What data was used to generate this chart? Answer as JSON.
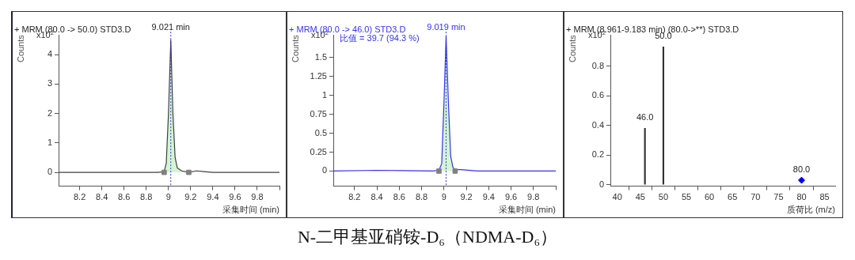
{
  "chart_data": [
    {
      "type": "line",
      "title": "+ MRM (80.0 -> 50.0) STD3.D",
      "xlabel": "采集时间 (min)",
      "ylabel": "Counts",
      "annotations": [
        "x10$^{2}$",
        "N-二甲基亚硝铵-D₆（NDMA-D₆）"
      ],
      "xlim": [
        8.01,
        10.0
      ],
      "xticks": [
        8.2,
        8.4,
        8.6,
        8.8,
        9,
        9.2,
        9.4,
        9.6,
        9.8,
        {
          "value": 10,
          "label": null
        }
      ],
      "ylim": [
        -0.47,
        4.67
      ],
      "yticks": [
        0,
        1,
        2,
        3,
        4
      ],
      "ref_lines": [
        {
          "axis": "x",
          "value": 9.021,
          "label": "9.021 min",
          "color": "#3333cc",
          "line_style": "dotted"
        }
      ],
      "series": [
        {
          "type": "area",
          "color": "#d4f5d0",
          "x": [
            8.961,
            8.98,
            9.0,
            9.021,
            9.04,
            9.06,
            9.08,
            9.12,
            9.183
          ],
          "values": [
            0,
            0.3,
            2.0,
            4.5,
            2.0,
            0.5,
            0.15,
            0.05,
            0
          ]
        },
        {
          "type": "line",
          "color": "#404040",
          "x": [
            8.01,
            8.5,
            8.9,
            8.96,
            8.98,
            9.0,
            9.021,
            9.04,
            9.06,
            9.08,
            9.12,
            9.183,
            9.25,
            9.4,
            10.0
          ],
          "values": [
            0,
            0,
            0,
            0.02,
            0.3,
            2.0,
            4.5,
            2.0,
            0.5,
            0.15,
            0.05,
            0,
            0.05,
            0,
            0
          ]
        },
        {
          "type": "scatter",
          "marker": "square",
          "color": "#808080",
          "x": [
            8.961,
            9.183
          ],
          "values": [
            0,
            0
          ]
        }
      ]
    },
    {
      "type": "line",
      "title": "+ MRM (80.0 -> 46.0) STD3.D",
      "subtitle": "比值 = 39.7 (94.3 %)",
      "xlabel": "采集时间 (min)",
      "ylabel": "Counts",
      "annotations": [
        "x10$^{2}$"
      ],
      "xlim": [
        8.01,
        10.0
      ],
      "xticks": [
        8.2,
        8.4,
        8.6,
        8.8,
        9,
        9.2,
        9.4,
        9.6,
        9.8,
        {
          "value": 10,
          "label": null
        }
      ],
      "ylim": [
        -0.2,
        1.8
      ],
      "yticks": [
        0,
        0.25,
        0.5,
        0.75,
        1,
        1.25,
        1.5
      ],
      "ref_lines": [
        {
          "axis": "x",
          "value": 9.019,
          "label": "9.019 min",
          "color": "#3333cc",
          "line_style": "dotted"
        }
      ],
      "series": [
        {
          "type": "area",
          "color": "#d4f5d0",
          "x": [
            8.955,
            8.98,
            9.0,
            9.019,
            9.04,
            9.06,
            9.08,
            9.1
          ],
          "values": [
            0,
            0.1,
            0.9,
            1.78,
            0.9,
            0.2,
            0.05,
            0
          ]
        },
        {
          "type": "line",
          "color": "#3333ee",
          "x": [
            8.01,
            8.4,
            8.9,
            8.955,
            8.98,
            9.0,
            9.019,
            9.04,
            9.06,
            9.08,
            9.1,
            9.15,
            9.3,
            10.0
          ],
          "values": [
            0,
            0.01,
            0,
            0.01,
            0.1,
            0.9,
            1.78,
            0.9,
            0.2,
            0.05,
            0.02,
            0.02,
            0,
            0
          ]
        },
        {
          "type": "scatter",
          "marker": "square",
          "color": "#808080",
          "x": [
            8.955,
            9.1
          ],
          "values": [
            0,
            0
          ]
        }
      ]
    },
    {
      "type": "bar",
      "title": "+ MRM (8.961-9.183 min) (80.0->**) STD3.D",
      "xlabel": "质荷比 (m/z)",
      "ylabel": "Counts",
      "annotations": [
        "x10$^{2}$",
        {
          "text": "46.0",
          "x": 46,
          "y": 0.38
        },
        {
          "text": "50.0",
          "x": 50,
          "y": 0.93
        },
        {
          "text": "80.0",
          "x": 80,
          "y": 0.03
        }
      ],
      "xlim": [
        38.5,
        87.3
      ],
      "xticks": [
        40,
        45,
        50,
        55,
        60,
        65,
        70,
        75,
        80,
        85
      ],
      "ylim": [
        -0.01,
        1.01
      ],
      "yticks": [
        0,
        0.2,
        0.4,
        0.6,
        0.8
      ],
      "series": [
        {
          "type": "bar",
          "color": "#333333",
          "x": [
            46,
            50
          ],
          "values": [
            0.38,
            0.93
          ]
        },
        {
          "type": "scatter",
          "marker": "diamond",
          "color": "#0000ee",
          "x": [
            80
          ],
          "values": [
            0.03
          ]
        }
      ]
    }
  ]
}
